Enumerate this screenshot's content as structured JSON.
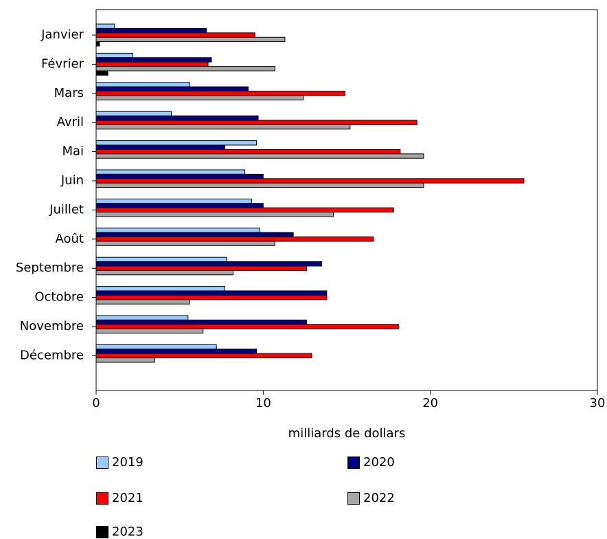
{
  "chart_data": {
    "type": "bar",
    "orientation": "horizontal",
    "xlabel": "milliards de dollars",
    "xlim": [
      0,
      30
    ],
    "xticks": [
      0,
      10,
      20,
      30
    ],
    "grid": false,
    "legend_position": "bottom",
    "categories": [
      "Janvier",
      "Février",
      "Mars",
      "Avril",
      "Mai",
      "Juin",
      "Juillet",
      "Août",
      "Septembre",
      "Octobre",
      "Novembre",
      "Décembre"
    ],
    "series": [
      {
        "name": "2019",
        "color": "#99ccff",
        "values": [
          1.1,
          2.2,
          5.6,
          4.5,
          9.6,
          8.9,
          9.3,
          9.8,
          7.8,
          7.7,
          5.5,
          7.2
        ]
      },
      {
        "name": "2020",
        "color": "#000080",
        "values": [
          6.6,
          6.9,
          9.1,
          9.7,
          7.7,
          10.0,
          10.0,
          11.8,
          13.5,
          13.8,
          12.6,
          9.6
        ]
      },
      {
        "name": "2021",
        "color": "#ff0000",
        "values": [
          9.5,
          6.7,
          14.9,
          19.2,
          18.2,
          25.6,
          17.8,
          16.6,
          12.6,
          13.8,
          18.1,
          12.9
        ]
      },
      {
        "name": "2022",
        "color": "#a6a6a6",
        "values": [
          11.3,
          10.7,
          12.4,
          15.2,
          19.6,
          19.6,
          14.2,
          10.7,
          8.2,
          5.6,
          6.4,
          3.5
        ]
      },
      {
        "name": "2023",
        "color": "#000000",
        "values": [
          0.2,
          0.7,
          null,
          null,
          null,
          null,
          null,
          null,
          null,
          null,
          null,
          null
        ]
      }
    ]
  }
}
